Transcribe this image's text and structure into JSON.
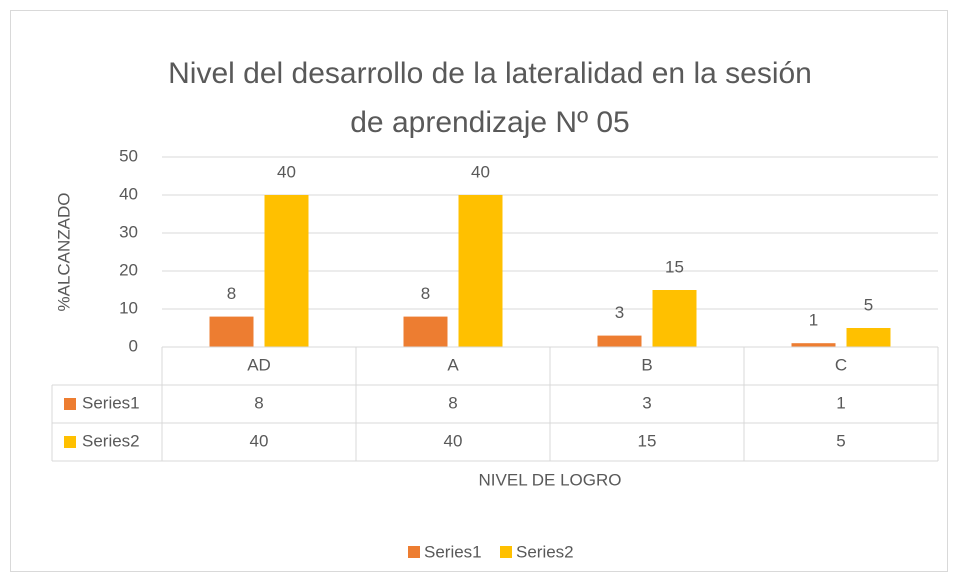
{
  "chart_data": {
    "type": "bar",
    "title": [
      "Nivel del desarrollo de la lateralidad en la sesión",
      "de aprendizaje Nº 05"
    ],
    "x_label": "NIVEL DE LOGRO",
    "y_label": "%ALCANZADO",
    "categories": [
      "AD",
      "A",
      "B",
      "C"
    ],
    "series": [
      {
        "name": "Series1",
        "color": "#ed7d31",
        "values": [
          8,
          8,
          3,
          1
        ]
      },
      {
        "name": "Series2",
        "color": "#ffc000",
        "values": [
          40,
          40,
          15,
          5
        ]
      }
    ],
    "ylim": [
      0,
      50
    ],
    "yticks": [
      0,
      10,
      20,
      30,
      40,
      50
    ],
    "grid": true,
    "legend": "bottom",
    "data_table": true
  }
}
